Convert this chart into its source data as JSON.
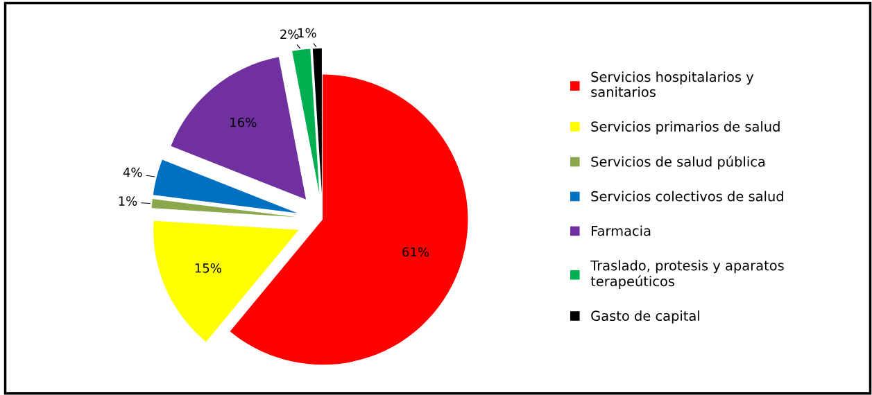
{
  "chart_data": {
    "type": "pie",
    "categories": [
      "Servicios hospitalarios y sanitarios",
      "Servicios primarios de salud",
      "Servicios de salud pública",
      "Servicios colectivos de salud",
      "Farmacia",
      "Traslado, protesis y aparatos terapeúticos",
      "Gasto de capital"
    ],
    "values": [
      61,
      15,
      1,
      4,
      16,
      2,
      1
    ],
    "colors": [
      "#ff0000",
      "#ffff00",
      "#8aa84b",
      "#0070c0",
      "#7030a0",
      "#00b050",
      "#000000"
    ],
    "value_labels": [
      "61%",
      "15%",
      "1%",
      "4%",
      "16%",
      "2%",
      "1%"
    ],
    "legend": "right"
  }
}
